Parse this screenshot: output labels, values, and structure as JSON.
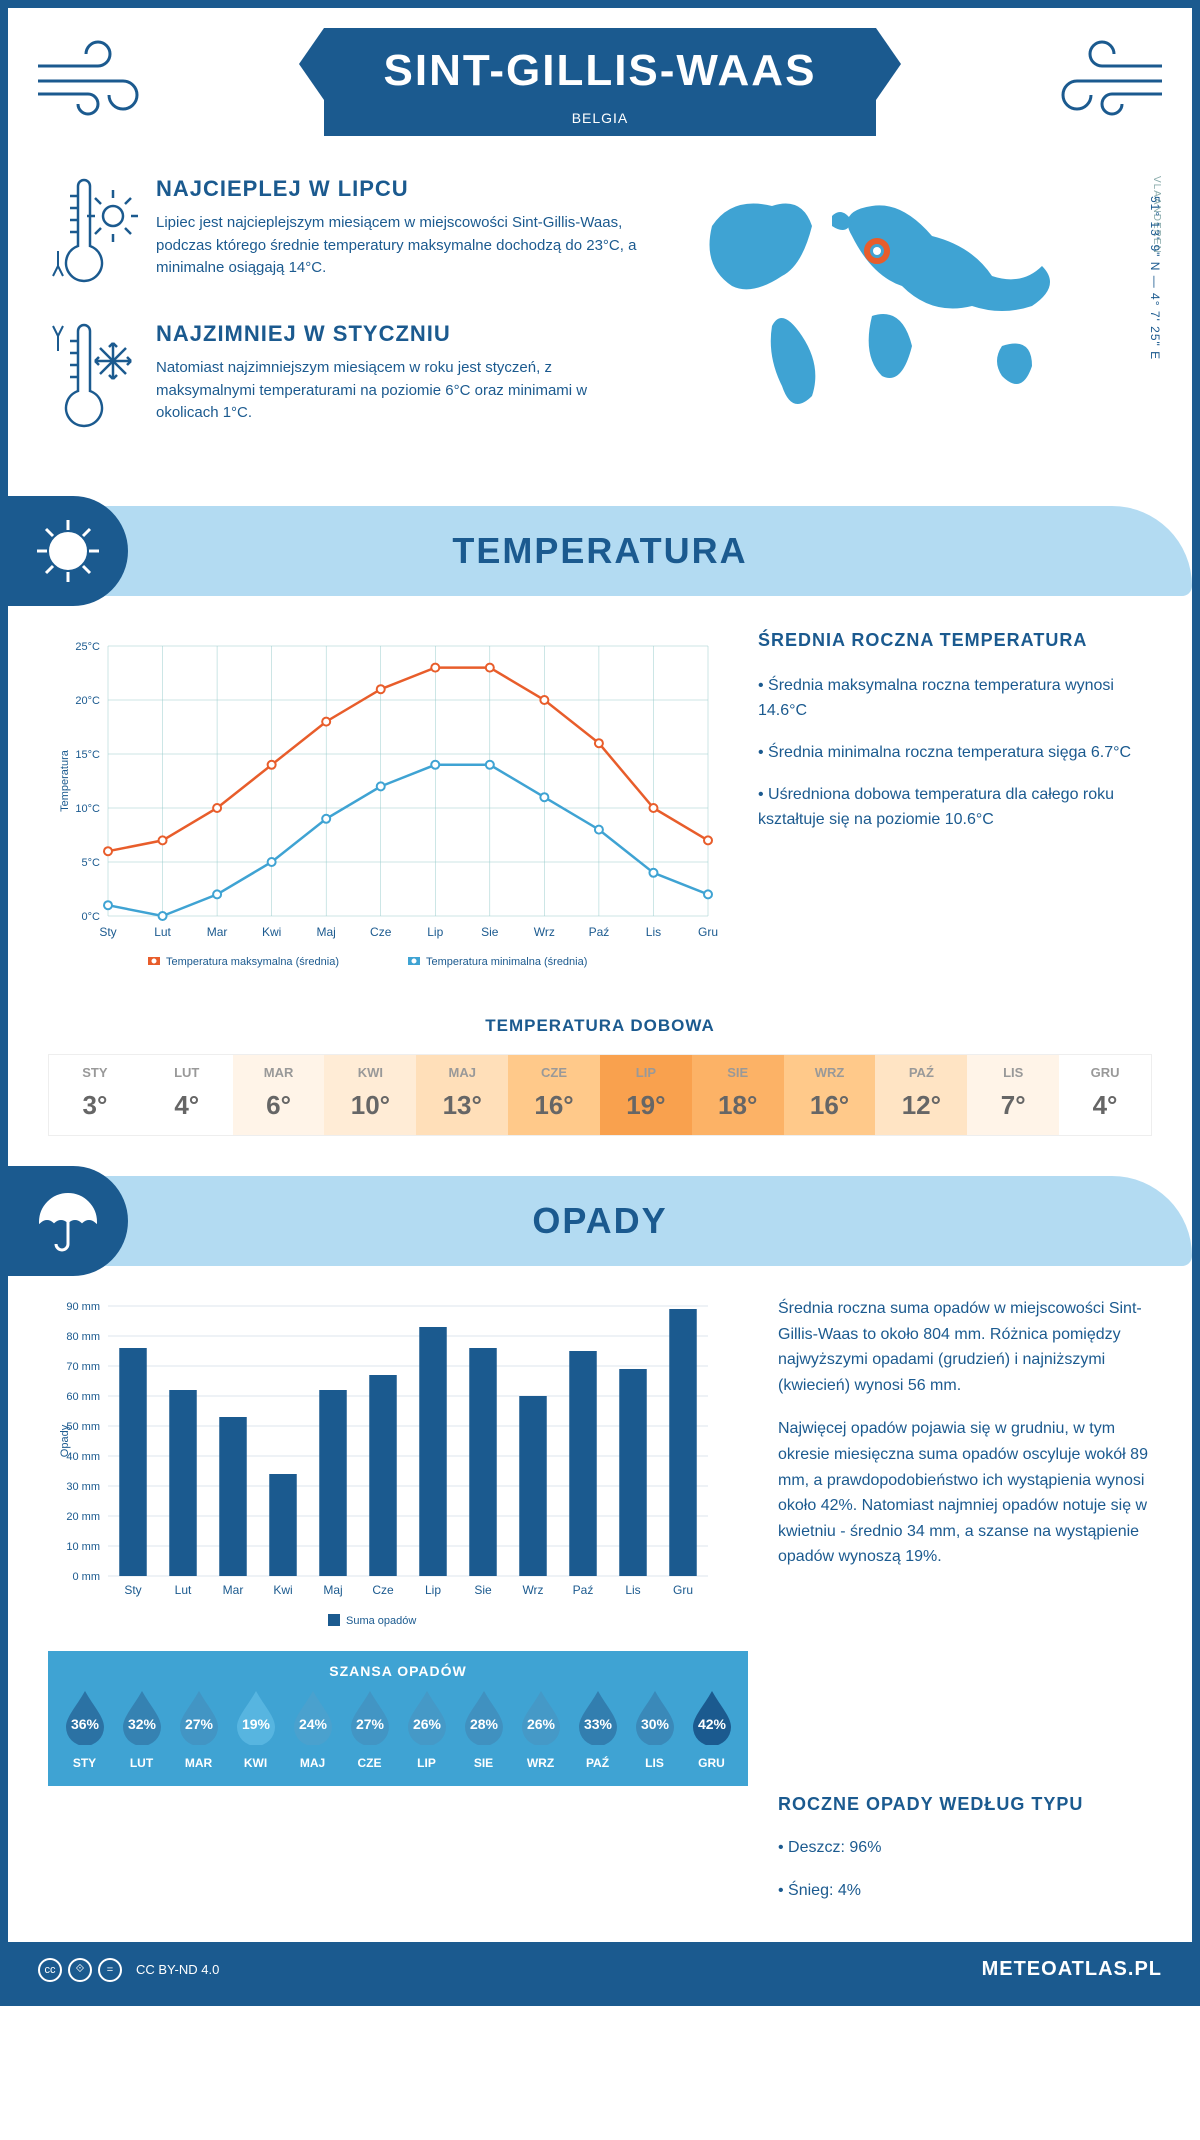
{
  "header": {
    "city": "SINT-GILLIS-WAAS",
    "country": "BELGIA"
  },
  "intro": {
    "warmest": {
      "title": "NAJCIEPLEJ W LIPCU",
      "text": "Lipiec jest najcieplejszym miesiącem w miejscowości Sint-Gillis-Waas, podczas którego średnie temperatury maksymalne dochodzą do 23°C, a minimalne osiągają 14°C."
    },
    "coldest": {
      "title": "NAJZIMNIEJ W STYCZNIU",
      "text": "Natomiast najzimniejszym miesiącem w roku jest styczeń, z maksymalnymi temperaturami na poziomie 6°C oraz minimami w okolicach 1°C."
    },
    "coords": "51° 13' 9\" N — 4° 7' 25\" E",
    "region": "VLAANDEREN"
  },
  "sections": {
    "temperature": "TEMPERATURA",
    "precipitation": "OPADY"
  },
  "temp_chart": {
    "type": "line",
    "months": [
      "Sty",
      "Lut",
      "Mar",
      "Kwi",
      "Maj",
      "Cze",
      "Lip",
      "Sie",
      "Wrz",
      "Paź",
      "Lis",
      "Gru"
    ],
    "max_series": [
      6,
      7,
      10,
      14,
      18,
      21,
      23,
      23,
      20,
      16,
      10,
      7
    ],
    "min_series": [
      1,
      0,
      2,
      5,
      9,
      12,
      14,
      14,
      11,
      8,
      4,
      2
    ],
    "max_color": "#e85d2b",
    "min_color": "#3fa3d3",
    "grid_color": "#9cc",
    "ylabel": "Temperatura",
    "ylim": [
      0,
      25
    ],
    "ytick_step": 5,
    "y_suffix": "°C",
    "legend_max": "Temperatura maksymalna (średnia)",
    "legend_min": "Temperatura minimalna (średnia)"
  },
  "temp_info": {
    "title": "ŚREDNIA ROCZNA TEMPERATURA",
    "b1": "• Średnia maksymalna roczna temperatura wynosi 14.6°C",
    "b2": "• Średnia minimalna roczna temperatura sięga 6.7°C",
    "b3": "• Uśredniona dobowa temperatura dla całego roku kształtuje się na poziomie 10.6°C"
  },
  "daily": {
    "title": "TEMPERATURA DOBOWA",
    "months": [
      "STY",
      "LUT",
      "MAR",
      "KWI",
      "MAJ",
      "CZE",
      "LIP",
      "SIE",
      "WRZ",
      "PAŹ",
      "LIS",
      "GRU"
    ],
    "values": [
      "3°",
      "4°",
      "6°",
      "10°",
      "13°",
      "16°",
      "19°",
      "18°",
      "16°",
      "12°",
      "7°",
      "4°"
    ],
    "colors": [
      "#ffffff",
      "#ffffff",
      "#fff4e8",
      "#ffecd6",
      "#ffdfb9",
      "#ffc98a",
      "#f9a14e",
      "#fcb266",
      "#ffc98a",
      "#ffe4c4",
      "#fff4e8",
      "#ffffff"
    ]
  },
  "precip_chart": {
    "type": "bar",
    "months": [
      "Sty",
      "Lut",
      "Mar",
      "Kwi",
      "Maj",
      "Cze",
      "Lip",
      "Sie",
      "Wrz",
      "Paź",
      "Lis",
      "Gru"
    ],
    "values": [
      76,
      62,
      53,
      34,
      62,
      67,
      83,
      76,
      60,
      75,
      69,
      89
    ],
    "bar_color": "#1b5a8f",
    "ylabel": "Opady",
    "ylim": [
      0,
      90
    ],
    "ytick_step": 10,
    "y_suffix": " mm",
    "legend": "Suma opadów"
  },
  "precip_text": {
    "p1": "Średnia roczna suma opadów w miejscowości Sint-Gillis-Waas to około 804 mm. Różnica pomiędzy najwyższymi opadami (grudzień) i najniższymi (kwiecień) wynosi 56 mm.",
    "p2": "Najwięcej opadów pojawia się w grudniu, w tym okresie miesięczna suma opadów oscyluje wokół 89 mm, a prawdopodobieństwo ich wystąpienia wynosi około 42%. Natomiast najmniej opadów notuje się w kwietniu - średnio 34 mm, a szanse na wystąpienie opadów wynoszą 19%.",
    "types_title": "ROCZNE OPADY WEDŁUG TYPU",
    "rain": "• Deszcz: 96%",
    "snow": "• Śnieg: 4%"
  },
  "chance": {
    "title": "SZANSA OPADÓW",
    "months": [
      "STY",
      "LUT",
      "MAR",
      "KWI",
      "MAJ",
      "CZE",
      "LIP",
      "SIE",
      "WRZ",
      "PAŹ",
      "LIS",
      "GRU"
    ],
    "values": [
      36,
      32,
      27,
      19,
      24,
      27,
      26,
      28,
      26,
      33,
      30,
      42
    ],
    "drop_color_dark": "#1b5a8f",
    "drop_color_light": "#57b5e0"
  },
  "footer": {
    "license": "CC BY-ND 4.0",
    "brand": "METEOATLAS.PL"
  }
}
